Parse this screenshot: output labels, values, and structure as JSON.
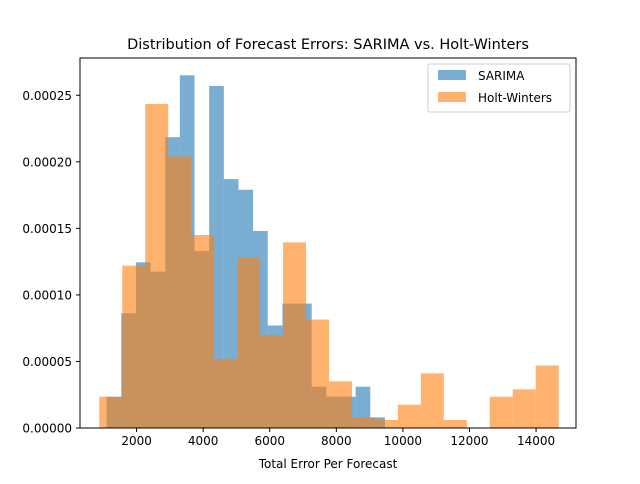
{
  "chart_data": {
    "type": "histogram",
    "title": "Distribution of Forecast Errors: SARIMA vs. Holt-Winters",
    "xlabel": "Total Error Per Forecast",
    "ylabel": "",
    "xlim": [
      300,
      15200
    ],
    "ylim": [
      0,
      0.000278
    ],
    "xticks": [
      2000,
      4000,
      6000,
      8000,
      10000,
      12000,
      14000
    ],
    "xtick_labels": [
      "2000",
      "4000",
      "6000",
      "8000",
      "10000",
      "12000",
      "14000"
    ],
    "yticks": [
      0,
      5e-05,
      0.0001,
      0.00015,
      0.0002,
      0.00025
    ],
    "ytick_labels": [
      "0.00000",
      "0.00005",
      "0.00010",
      "0.00015",
      "0.00020",
      "0.00025"
    ],
    "legend": {
      "position": "top-right"
    },
    "series": [
      {
        "name": "SARIMA",
        "color": "#1f77b4",
        "opacity": 0.6,
        "bins": [
          {
            "x0": 1100,
            "x1": 1540,
            "y": 2.35e-05
          },
          {
            "x0": 1540,
            "x1": 1980,
            "y": 8.62e-05
          },
          {
            "x0": 1980,
            "x1": 2420,
            "y": 0.0001245
          },
          {
            "x0": 2420,
            "x1": 2860,
            "y": 0.0001175
          },
          {
            "x0": 2860,
            "x1": 3300,
            "y": 0.0002185
          },
          {
            "x0": 3300,
            "x1": 3740,
            "y": 0.000265
          },
          {
            "x0": 3740,
            "x1": 4180,
            "y": 0.000133
          },
          {
            "x0": 4180,
            "x1": 4620,
            "y": 0.000257
          },
          {
            "x0": 4620,
            "x1": 5060,
            "y": 0.000187
          },
          {
            "x0": 5060,
            "x1": 5500,
            "y": 0.000179
          },
          {
            "x0": 5500,
            "x1": 5940,
            "y": 0.000148
          },
          {
            "x0": 5940,
            "x1": 6380,
            "y": 7.7e-05
          },
          {
            "x0": 6380,
            "x1": 6820,
            "y": 9.35e-05
          },
          {
            "x0": 6820,
            "x1": 7260,
            "y": 9.35e-05
          },
          {
            "x0": 7260,
            "x1": 7700,
            "y": 3.1e-05
          },
          {
            "x0": 7700,
            "x1": 8140,
            "y": 2.35e-05
          },
          {
            "x0": 8140,
            "x1": 8580,
            "y": 2.35e-05
          },
          {
            "x0": 8580,
            "x1": 9020,
            "y": 3.1e-05
          },
          {
            "x0": 9020,
            "x1": 9460,
            "y": 8e-06
          }
        ]
      },
      {
        "name": "Holt-Winters",
        "color": "#ff7f0e",
        "opacity": 0.6,
        "bins": [
          {
            "x0": 880,
            "x1": 1570,
            "y": 2.35e-05
          },
          {
            "x0": 1570,
            "x1": 2260,
            "y": 0.000122
          },
          {
            "x0": 2260,
            "x1": 2950,
            "y": 0.0002435
          },
          {
            "x0": 2950,
            "x1": 3640,
            "y": 0.000204
          },
          {
            "x0": 3640,
            "x1": 4330,
            "y": 0.000145
          },
          {
            "x0": 4330,
            "x1": 5020,
            "y": 5.2e-05
          },
          {
            "x0": 5020,
            "x1": 5710,
            "y": 0.000128
          },
          {
            "x0": 5710,
            "x1": 6400,
            "y": 7e-05
          },
          {
            "x0": 6400,
            "x1": 7090,
            "y": 0.0001395
          },
          {
            "x0": 7090,
            "x1": 7780,
            "y": 8.15e-05
          },
          {
            "x0": 7780,
            "x1": 8470,
            "y": 3.5e-05
          },
          {
            "x0": 8470,
            "x1": 9160,
            "y": 8e-06
          },
          {
            "x0": 9160,
            "x1": 9850,
            "y": 6e-06
          },
          {
            "x0": 9850,
            "x1": 10540,
            "y": 1.75e-05
          },
          {
            "x0": 10540,
            "x1": 11230,
            "y": 4.1e-05
          },
          {
            "x0": 11230,
            "x1": 11920,
            "y": 6e-06
          },
          {
            "x0": 12610,
            "x1": 13300,
            "y": 2.35e-05
          },
          {
            "x0": 13300,
            "x1": 13990,
            "y": 2.9e-05
          },
          {
            "x0": 13990,
            "x1": 14680,
            "y": 4.7e-05
          }
        ]
      }
    ]
  }
}
